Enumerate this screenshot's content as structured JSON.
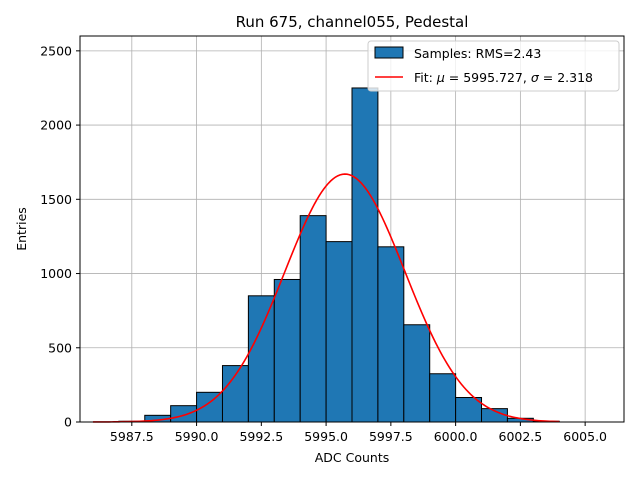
{
  "chart_data": {
    "type": "bar",
    "title": "Run 675, channel055, Pedestal",
    "xlabel": "ADC Counts",
    "ylabel": "Entries",
    "xlim": [
      5985.5,
      6006.5
    ],
    "ylim": [
      0,
      2600
    ],
    "grid": true,
    "legend_position": "top-right",
    "xticks": [
      5987.5,
      5990.0,
      5992.5,
      5995.0,
      5997.5,
      6000.0,
      6002.5,
      6005.0
    ],
    "xtick_labels": [
      "5987.5",
      "5990.0",
      "5992.5",
      "5995.0",
      "5997.5",
      "6000.0",
      "6002.5",
      "6005.0"
    ],
    "yticks": [
      0,
      500,
      1000,
      1500,
      2000,
      2500
    ],
    "ytick_labels": [
      "0",
      "500",
      "1000",
      "1500",
      "2000",
      "2500"
    ],
    "histogram": {
      "name": "Samples: RMS=2.43",
      "color": "#1f77b4",
      "edge_color": "#000000",
      "bin_edges": [
        5986.0,
        5987.0,
        5988.0,
        5989.0,
        5990.0,
        5991.0,
        5992.0,
        5993.0,
        5994.0,
        5995.0,
        5996.0,
        5997.0,
        5998.0,
        5999.0,
        6000.0,
        6001.0,
        6002.0,
        6003.0,
        6004.0,
        6005.0,
        6006.0
      ],
      "counts": [
        0,
        5,
        45,
        110,
        200,
        380,
        850,
        960,
        1390,
        1215,
        2250,
        1180,
        655,
        325,
        165,
        90,
        25,
        5,
        0,
        0
      ]
    },
    "fit": {
      "name_prefix": "Fit: ",
      "mu_symbol": "μ",
      "sigma_symbol": "σ",
      "mu": 5995.727,
      "sigma": 2.318,
      "amplitude": 1670,
      "x_range": [
        5986.0,
        6004.0
      ],
      "color": "#ff0000"
    }
  }
}
